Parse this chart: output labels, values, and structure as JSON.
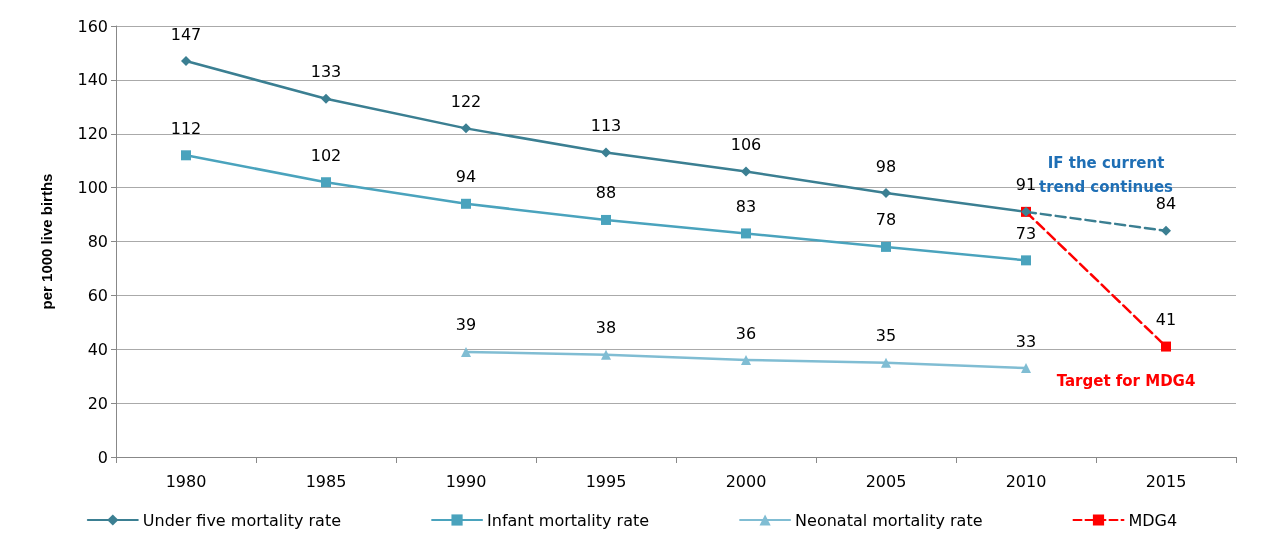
{
  "chart_data": {
    "type": "line",
    "ylabel": "per 1000 live births",
    "categories": [
      "1980",
      "1985",
      "1990",
      "1995",
      "2000",
      "2005",
      "2010",
      "2015"
    ],
    "series": [
      {
        "name": "Under five mortality rate",
        "color": "#3b7f92",
        "marker": "diamond",
        "values": [
          147,
          133,
          122,
          113,
          106,
          98,
          91,
          null
        ]
      },
      {
        "name": "Infant mortality rate",
        "color": "#4aa3bd",
        "marker": "square",
        "values": [
          112,
          102,
          94,
          88,
          83,
          78,
          73,
          null
        ]
      },
      {
        "name": "Neonatal mortality rate",
        "color": "#80bdd3",
        "marker": "triangle",
        "values": [
          null,
          null,
          39,
          38,
          36,
          35,
          33,
          null
        ]
      },
      {
        "name": "MDG4",
        "color": "#ff0000",
        "marker": "square",
        "line_style": "dashed",
        "values": [
          null,
          null,
          null,
          null,
          null,
          null,
          91,
          41
        ],
        "value_labels": [
          null,
          null,
          null,
          null,
          null,
          null,
          null,
          "41"
        ]
      },
      {
        "color": "#3b7f92",
        "marker": "diamond",
        "line_style": "dashed",
        "values": [
          null,
          null,
          null,
          null,
          null,
          null,
          91,
          84
        ],
        "value_labels": [
          null,
          null,
          null,
          null,
          null,
          null,
          null,
          "84"
        ]
      }
    ],
    "annotations": [
      {
        "text": "IF the current trend continues",
        "x": "2015",
        "y": 84
      },
      {
        "text": "Target for MDG4",
        "x": "2015",
        "y": 41
      }
    ],
    "ylim": [
      0,
      160
    ],
    "yticks": [
      0,
      20,
      40,
      60,
      80,
      100,
      120,
      140,
      160
    ],
    "grid": "y",
    "legend": "bottom",
    "data_labels": true
  }
}
